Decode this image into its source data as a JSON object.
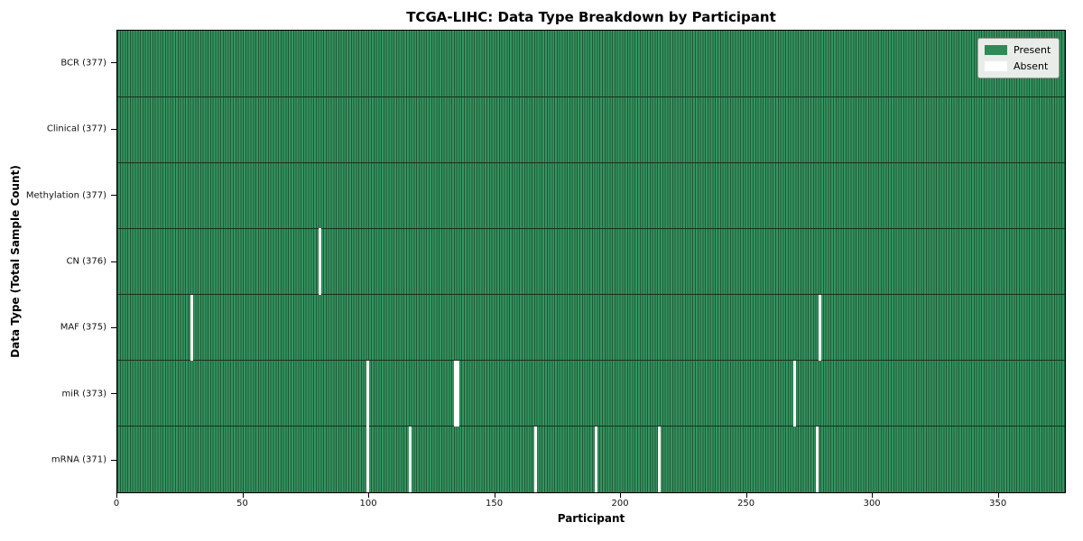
{
  "page": {
    "title": "TCGA-LIHC: Data Type Breakdown by Participant"
  },
  "axes": {
    "xlabel": "Participant",
    "ylabel": "Data Type (Total Sample Count)"
  },
  "legend": {
    "items": [
      {
        "label": "Present",
        "color": "#2e8b57"
      },
      {
        "label": "Absent",
        "color": "#ffffff"
      }
    ]
  },
  "colors": {
    "present": "#2e8b57",
    "absent": "#ffffff",
    "cell_fill": "#36945f",
    "cell_edge": "#1d5a3a",
    "row_separator": "#16301f",
    "axes_border": "#000000",
    "legend_bg": "#e9ede9",
    "legend_border": "#9c9c9c"
  },
  "chart_data": {
    "type": "heatmap",
    "title": "TCGA-LIHC: Data Type Breakdown by Participant",
    "xlabel": "Participant",
    "ylabel": "Data Type (Total Sample Count)",
    "n_participants": 377,
    "x_ticks": [
      0,
      50,
      100,
      150,
      200,
      250,
      300,
      350
    ],
    "legend_entries": [
      "Present",
      "Absent"
    ],
    "legend_position": "upper right",
    "grid": false,
    "rows": [
      {
        "label": "BCR (377)",
        "data_type": "BCR",
        "total": 377,
        "absent_participants": []
      },
      {
        "label": "Clinical (377)",
        "data_type": "Clinical",
        "total": 377,
        "absent_participants": []
      },
      {
        "label": "Methylation (377)",
        "data_type": "Methylation",
        "total": 377,
        "absent_participants": []
      },
      {
        "label": "CN (376)",
        "data_type": "CN",
        "total": 376,
        "absent_participants": [
          80
        ]
      },
      {
        "label": "MAF (375)",
        "data_type": "MAF",
        "total": 375,
        "absent_participants": [
          29,
          279
        ]
      },
      {
        "label": "miR (373)",
        "data_type": "miR",
        "total": 373,
        "absent_participants": [
          99,
          134,
          135,
          269
        ]
      },
      {
        "label": "mRNA (371)",
        "data_type": "mRNA",
        "total": 371,
        "absent_participants": [
          99,
          116,
          166,
          190,
          215,
          278
        ]
      }
    ]
  }
}
